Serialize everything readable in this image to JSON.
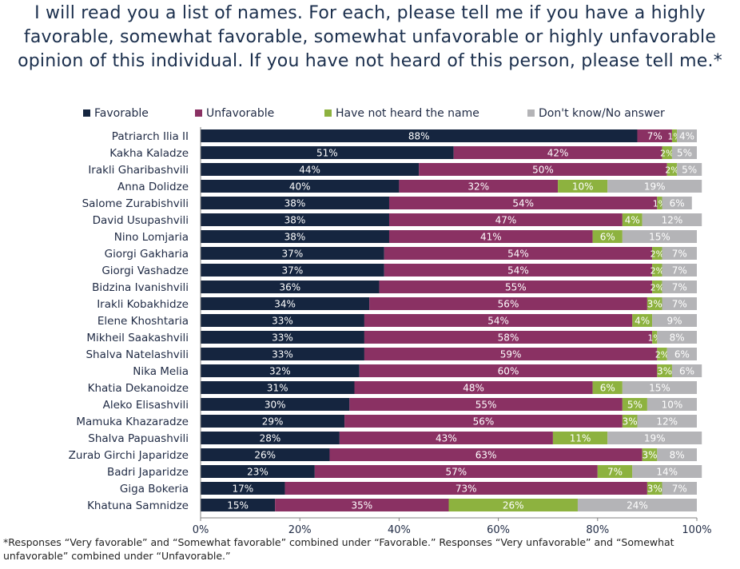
{
  "title": "I will read you a list of names. For each, please tell me if you have a highly favorable, somewhat favorable, somewhat unfavorable or highly unfavorable opinion of this individual. If you have not heard of this person, please tell me.*",
  "footnote": "*Responses “Very favorable” and “Somewhat favorable” combined under “Favorable.” Responses “Very unfavorable” and “Somewhat unfavorable” combined under “Unfavorable.”",
  "chart_data": {
    "type": "bar",
    "orientation": "horizontal",
    "stacked": true,
    "xlim": [
      0,
      100
    ],
    "xticks": [
      "0%",
      "20%",
      "40%",
      "60%",
      "80%",
      "100%"
    ],
    "legend_position": "top",
    "categories": [
      "Patriarch Ilia II",
      "Kakha Kaladze",
      "Irakli Gharibashvili",
      "Anna Dolidze",
      "Salome Zurabishvili",
      "David Usupashvili",
      "Nino Lomjaria",
      "Giorgi Gakharia",
      "Giorgi Vashadze",
      "Bidzina Ivanishvili",
      "Irakli Kobakhidze",
      "Elene Khoshtaria",
      "Mikheil Saakashvili",
      "Shalva Natelashvili",
      "Nika Melia",
      "Khatia Dekanoidze",
      "Aleko Elisashvili",
      "Mamuka Khazaradze",
      "Shalva Papuashvili",
      "Zurab Girchi Japaridze",
      "Badri Japaridze",
      "Giga Bokeria",
      "Khatuna Samnidze"
    ],
    "series": [
      {
        "name": "Favorable",
        "color": "#15253f",
        "label_color": "#ffffff",
        "values": [
          88,
          51,
          44,
          40,
          38,
          38,
          38,
          37,
          37,
          36,
          34,
          33,
          33,
          33,
          32,
          31,
          30,
          29,
          28,
          26,
          23,
          17,
          15
        ]
      },
      {
        "name": "Unfavorable",
        "color": "#8a3163",
        "label_color": "#ffffff",
        "values": [
          7,
          42,
          50,
          32,
          54,
          47,
          41,
          54,
          54,
          55,
          56,
          54,
          58,
          59,
          60,
          48,
          55,
          56,
          43,
          63,
          57,
          73,
          35
        ]
      },
      {
        "name": "Have not heard the name",
        "color": "#8db23f",
        "label_color": "#ffffff",
        "values": [
          1,
          2,
          2,
          10,
          1,
          4,
          6,
          2,
          2,
          2,
          3,
          4,
          1,
          2,
          3,
          6,
          5,
          3,
          11,
          3,
          7,
          3,
          26
        ]
      },
      {
        "name": "Don't know/No answer",
        "color": "#b4b4b7",
        "label_color": "#ffffff",
        "values": [
          4,
          5,
          5,
          19,
          6,
          12,
          15,
          7,
          7,
          7,
          7,
          9,
          8,
          6,
          6,
          15,
          10,
          12,
          19,
          8,
          14,
          7,
          24
        ]
      }
    ]
  }
}
